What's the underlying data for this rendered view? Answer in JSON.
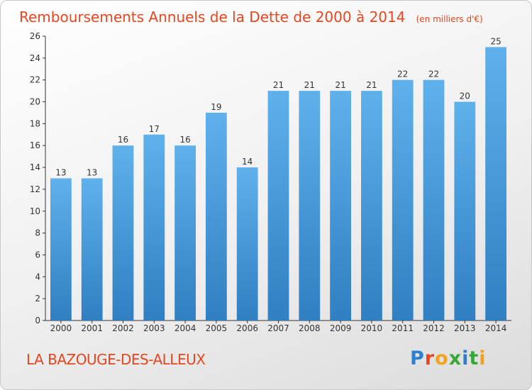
{
  "chart_data": {
    "type": "bar",
    "title": "Remboursements Annuels de la Dette de 2000 à 2014",
    "unit_note": "(en milliers d'€)",
    "categories": [
      "2000",
      "2001",
      "2002",
      "2003",
      "2004",
      "2005",
      "2006",
      "2007",
      "2008",
      "2009",
      "2010",
      "2011",
      "2012",
      "2013",
      "2014"
    ],
    "values": [
      13,
      13,
      16,
      17,
      16,
      19,
      14,
      21,
      21,
      21,
      21,
      22,
      22,
      20,
      25
    ],
    "ylim": [
      0,
      26
    ],
    "yticks": [
      0,
      2,
      4,
      6,
      8,
      10,
      12,
      14,
      16,
      18,
      20,
      22,
      24,
      26
    ],
    "grid": false,
    "bar_color": "#4a9fe0"
  },
  "footer": {
    "commune": "LA BAZOUGE-DES-ALLEUX",
    "logo": "Proxiti"
  }
}
